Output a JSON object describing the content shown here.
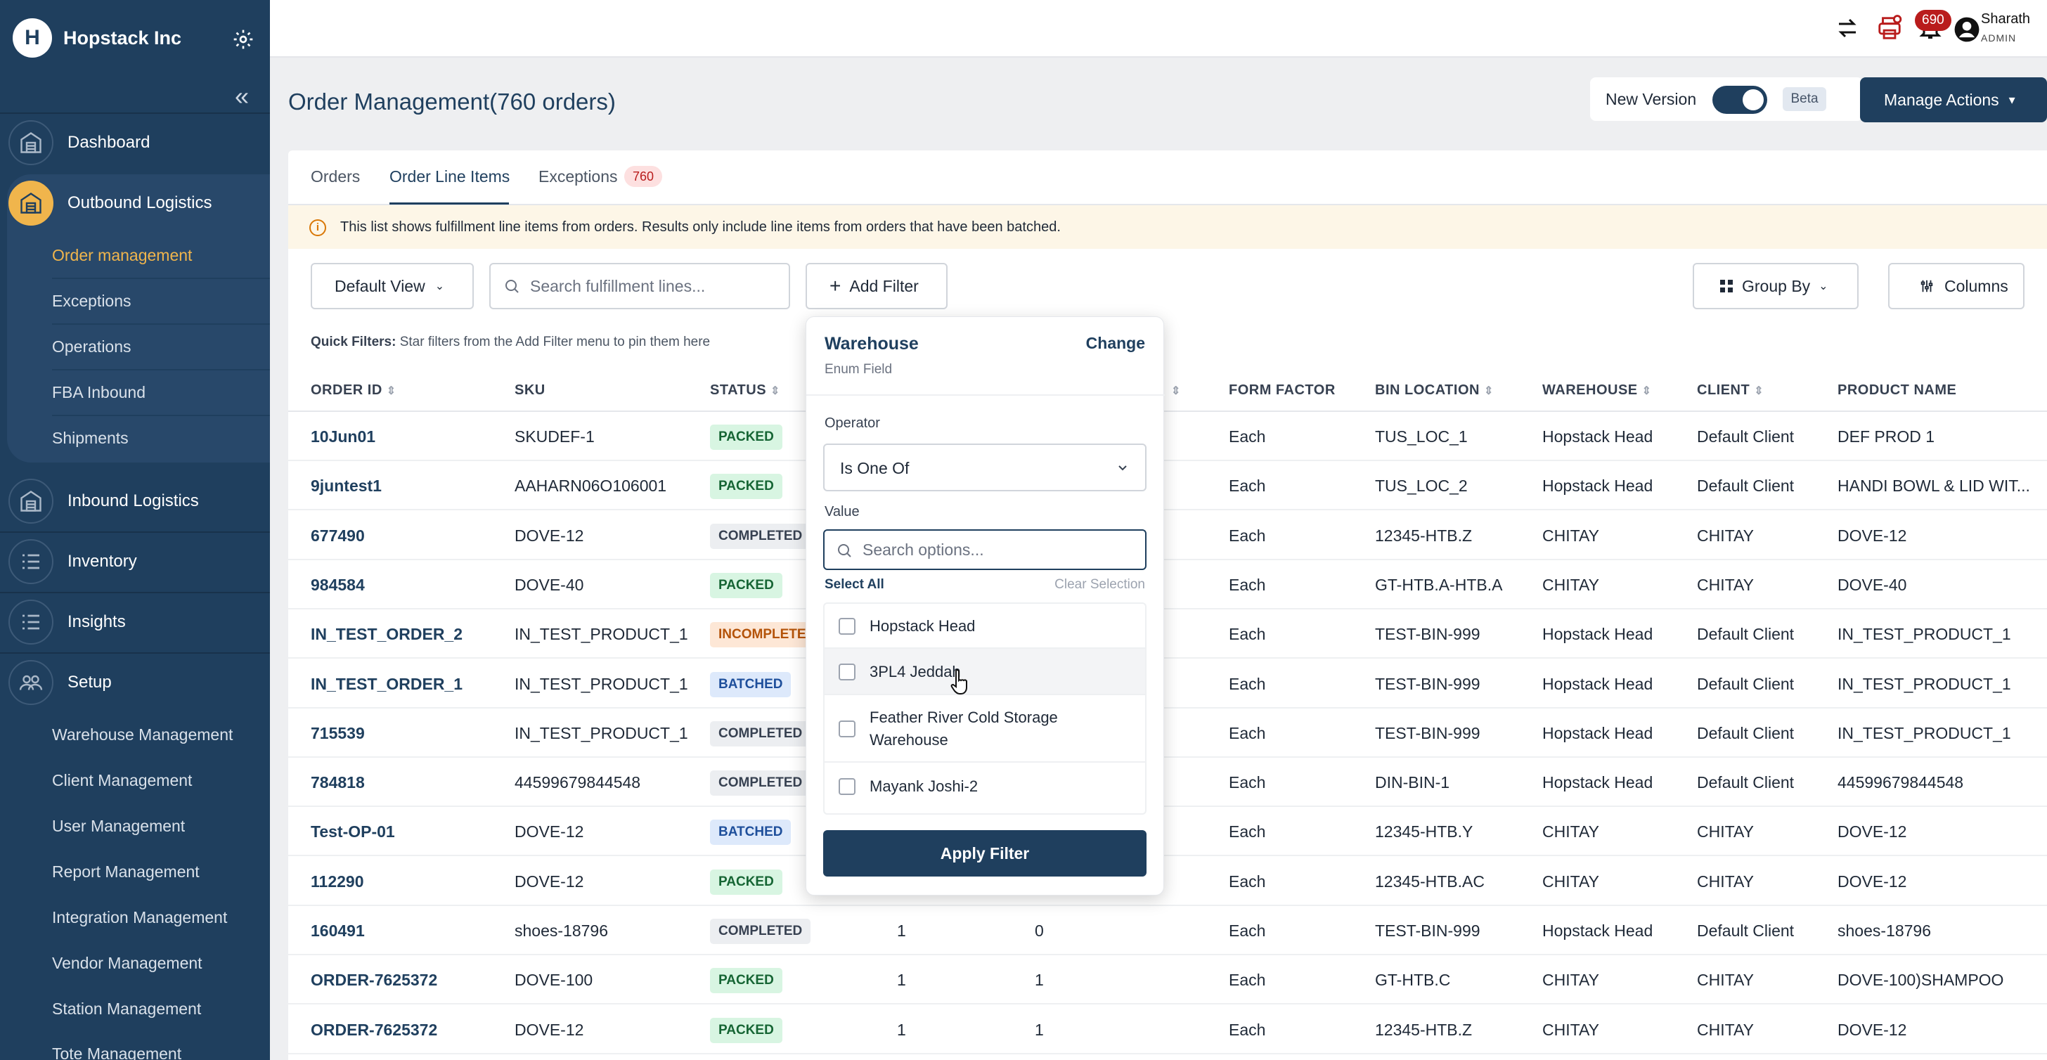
{
  "sidebar": {
    "brand": "Hopstack Inc",
    "logo_letter": "H",
    "nav": [
      {
        "label": "Dashboard",
        "icon": "warehouse-icon"
      },
      {
        "label": "Outbound Logistics",
        "icon": "warehouse-icon",
        "active": true
      },
      {
        "label": "Inbound Logistics",
        "icon": "warehouse-icon"
      },
      {
        "label": "Inventory",
        "icon": "list-icon"
      },
      {
        "label": "Insights",
        "icon": "list-icon"
      },
      {
        "label": "Setup",
        "icon": "people-icon"
      }
    ],
    "outbound_sub": [
      "Order management",
      "Exceptions",
      "Operations",
      "FBA Inbound",
      "Shipments"
    ],
    "setup_sub": [
      "Warehouse Management",
      "Client Management",
      "User Management",
      "Report Management",
      "Integration Management",
      "Vendor Management",
      "Station Management",
      "Tote Management"
    ]
  },
  "topbar": {
    "notification_count": "690",
    "user_name": "Sharath",
    "user_role": "ADMIN"
  },
  "header": {
    "title": "Order Management(760 orders)",
    "new_version_label": "New Version",
    "beta_label": "Beta",
    "manage_actions_label": "Manage Actions"
  },
  "tabs": {
    "orders": "Orders",
    "line_items": "Order Line Items",
    "exceptions": "Exceptions",
    "exceptions_count": "760"
  },
  "info": "This list shows fulfillment line items from orders. Results only include line items from orders that have been batched.",
  "toolbar": {
    "view_label": "Default View",
    "search_placeholder": "Search fulfillment lines...",
    "add_filter_label": "Add Filter",
    "group_by_label": "Group By",
    "columns_label": "Columns",
    "quick_filters_label": "Quick Filters:",
    "quick_filters_hint": "Star filters from the Add Filter menu to pin them here"
  },
  "table": {
    "headers": {
      "order_id": "ORDER ID",
      "sku": "SKU",
      "status": "STATUS",
      "form_factor": "FORM FACTOR",
      "bin_location": "BIN LOCATION",
      "warehouse": "WAREHOUSE",
      "client": "CLIENT",
      "product_name": "PRODUCT NAME"
    },
    "rows": [
      {
        "order_id": "10Jun01",
        "sku": "SKUDEF-1",
        "status": "PACKED",
        "qty1": "",
        "qty2": "",
        "form_factor": "Each",
        "bin": "TUS_LOC_1",
        "warehouse": "Hopstack Head",
        "client": "Default Client",
        "product": "DEF PROD 1"
      },
      {
        "order_id": "9juntest1",
        "sku": "AAHARN06O106001",
        "status": "PACKED",
        "qty1": "",
        "qty2": "",
        "form_factor": "Each",
        "bin": "TUS_LOC_2",
        "warehouse": "Hopstack Head",
        "client": "Default Client",
        "product": "HANDI BOWL & LID WIT..."
      },
      {
        "order_id": "677490",
        "sku": "DOVE-12",
        "status": "COMPLETED",
        "qty1": "",
        "qty2": "",
        "form_factor": "Each",
        "bin": "12345-HTB.Z",
        "warehouse": "CHITAY",
        "client": "CHITAY",
        "product": "DOVE-12"
      },
      {
        "order_id": "984584",
        "sku": "DOVE-40",
        "status": "PACKED",
        "qty1": "",
        "qty2": "",
        "form_factor": "Each",
        "bin": "GT-HTB.A-HTB.A",
        "warehouse": "CHITAY",
        "client": "CHITAY",
        "product": "DOVE-40"
      },
      {
        "order_id": "IN_TEST_ORDER_2",
        "sku": "IN_TEST_PRODUCT_1",
        "status": "INCOMPLETE",
        "qty1": "",
        "qty2": "",
        "form_factor": "Each",
        "bin": "TEST-BIN-999",
        "warehouse": "Hopstack Head",
        "client": "Default Client",
        "product": "IN_TEST_PRODUCT_1"
      },
      {
        "order_id": "IN_TEST_ORDER_1",
        "sku": "IN_TEST_PRODUCT_1",
        "status": "BATCHED",
        "qty1": "",
        "qty2": "",
        "form_factor": "Each",
        "bin": "TEST-BIN-999",
        "warehouse": "Hopstack Head",
        "client": "Default Client",
        "product": "IN_TEST_PRODUCT_1"
      },
      {
        "order_id": "715539",
        "sku": "IN_TEST_PRODUCT_1",
        "status": "COMPLETED",
        "qty1": "",
        "qty2": "",
        "form_factor": "Each",
        "bin": "TEST-BIN-999",
        "warehouse": "Hopstack Head",
        "client": "Default Client",
        "product": "IN_TEST_PRODUCT_1"
      },
      {
        "order_id": "784818",
        "sku": "44599679844548",
        "status": "COMPLETED",
        "qty1": "",
        "qty2": "",
        "form_factor": "Each",
        "bin": "DIN-BIN-1",
        "warehouse": "Hopstack Head",
        "client": "Default Client",
        "product": "44599679844548"
      },
      {
        "order_id": "Test-OP-01",
        "sku": "DOVE-12",
        "status": "BATCHED",
        "qty1": "",
        "qty2": "",
        "form_factor": "Each",
        "bin": "12345-HTB.Y",
        "warehouse": "CHITAY",
        "client": "CHITAY",
        "product": "DOVE-12"
      },
      {
        "order_id": "112290",
        "sku": "DOVE-12",
        "status": "PACKED",
        "qty1": "",
        "qty2": "",
        "form_factor": "Each",
        "bin": "12345-HTB.AC",
        "warehouse": "CHITAY",
        "client": "CHITAY",
        "product": "DOVE-12"
      },
      {
        "order_id": "160491",
        "sku": "shoes-18796",
        "status": "COMPLETED",
        "qty1": "1",
        "qty2": "0",
        "form_factor": "Each",
        "bin": "TEST-BIN-999",
        "warehouse": "Hopstack Head",
        "client": "Default Client",
        "product": "shoes-18796"
      },
      {
        "order_id": "ORDER-7625372",
        "sku": "DOVE-100",
        "status": "PACKED",
        "qty1": "1",
        "qty2": "1",
        "form_factor": "Each",
        "bin": "GT-HTB.C",
        "warehouse": "CHITAY",
        "client": "CHITAY",
        "product": "DOVE-100)SHAMPOO"
      },
      {
        "order_id": "ORDER-7625372",
        "sku": "DOVE-12",
        "status": "PACKED",
        "qty1": "1",
        "qty2": "1",
        "form_factor": "Each",
        "bin": "12345-HTB.Z",
        "warehouse": "CHITAY",
        "client": "CHITAY",
        "product": "DOVE-12"
      }
    ]
  },
  "filter": {
    "field": "Warehouse",
    "field_type": "Enum Field",
    "change_label": "Change",
    "operator_label": "Operator",
    "operator_value": "Is One Of",
    "value_label": "Value",
    "search_placeholder": "Search options...",
    "select_all": "Select All",
    "clear_selection": "Clear Selection",
    "options": [
      "Hopstack Head",
      "3PL4 Jeddah",
      "Feather River Cold Storage Warehouse",
      "Mayank Joshi-2"
    ],
    "apply_label": "Apply Filter"
  },
  "colors": {
    "brand_navy": "#1f3f5e",
    "accent_gold": "#f0b54c"
  }
}
